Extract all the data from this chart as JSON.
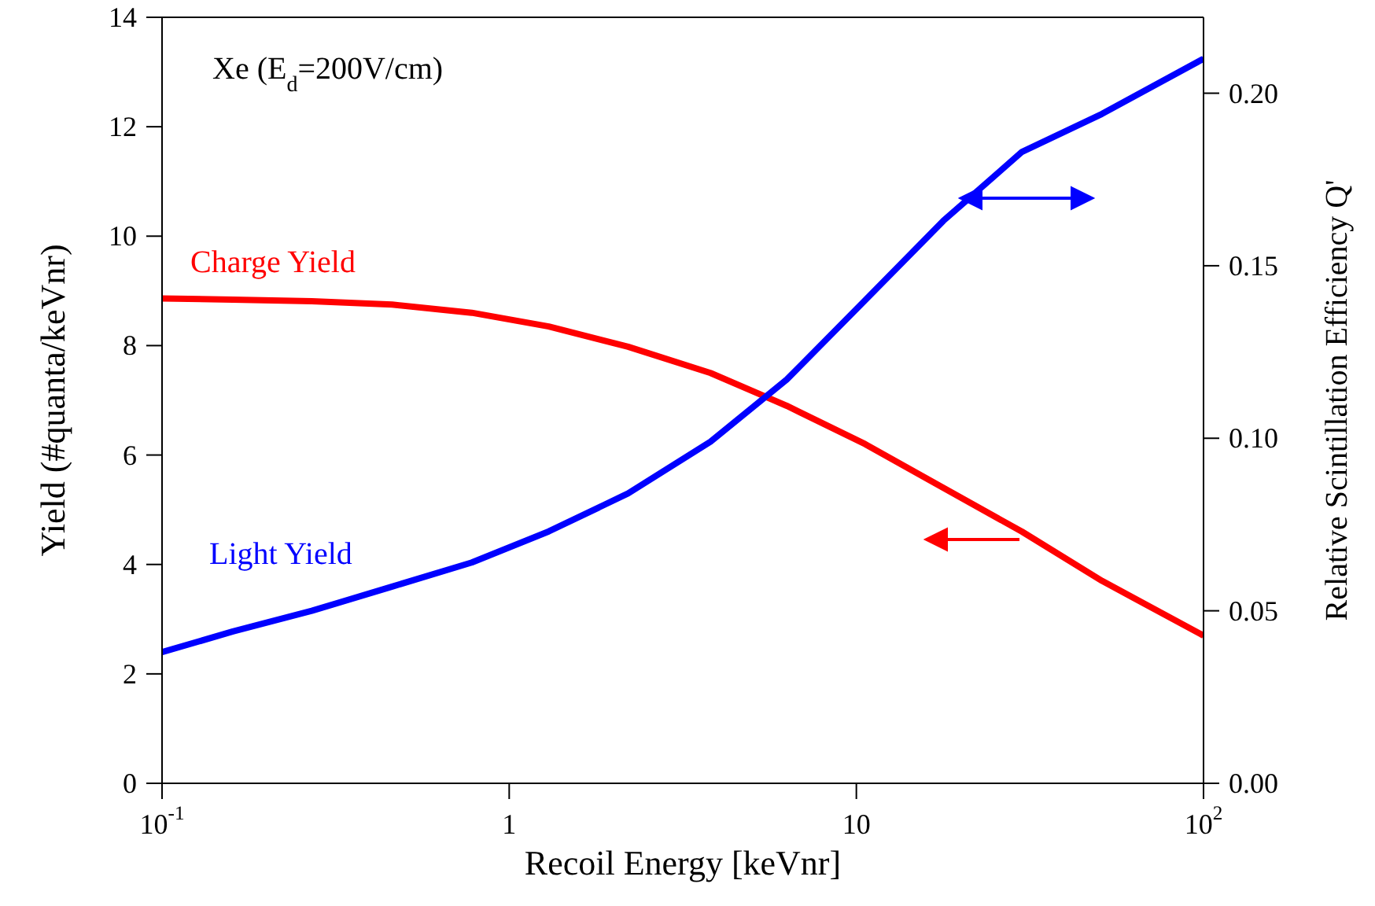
{
  "chart_data": {
    "type": "line",
    "xlabel": "Recoil Energy [keVnr]",
    "ylabel": "Yield (#quanta/keVnr)",
    "y2label": "Relative Scintillation Efficiency Q'",
    "annotations": [
      "Xe (E$_{d}$=200V/cm)"
    ],
    "x": [
      0.1,
      0.16,
      0.27,
      0.46,
      0.78,
      1.3,
      2.2,
      3.8,
      6.3,
      10.6,
      17.8,
      30,
      51,
      100
    ],
    "series": [
      {
        "name": "Charge Yield",
        "color": "#ff0000",
        "values": [
          8.86,
          8.84,
          8.81,
          8.75,
          8.6,
          8.35,
          7.98,
          7.5,
          6.9,
          6.2,
          5.4,
          4.6,
          3.7,
          2.7
        ]
      },
      {
        "name": "Light Yield",
        "color": "#0000ff",
        "axis": "y2",
        "values": [
          0.038,
          0.044,
          0.05,
          0.057,
          0.064,
          0.073,
          0.084,
          0.099,
          0.117,
          0.14,
          0.163,
          0.183,
          0.194,
          0.21
        ]
      }
    ],
    "log": "x",
    "xlim": [
      0.1,
      100
    ],
    "xticks": [
      {
        "value": 0.1,
        "label": "10$^{-1}$"
      },
      1,
      10,
      {
        "value": 100,
        "label": "10$^{2}$"
      }
    ],
    "ylim": [
      0,
      14
    ],
    "yticks": [
      0,
      2,
      4,
      6,
      8,
      10,
      12,
      14
    ],
    "y2lim": [
      0,
      0.222
    ],
    "y2ticks": [
      {
        "value": 0,
        "label": "0.00"
      },
      {
        "value": 0.05,
        "label": "0.05"
      },
      {
        "value": 0.1,
        "label": "0.10"
      },
      {
        "value": 0.15,
        "label": "0.15"
      },
      {
        "value": 0.2,
        "label": "0.20"
      }
    ],
    "grid": false,
    "legend": false,
    "marker": "none",
    "line_style": "solid"
  }
}
